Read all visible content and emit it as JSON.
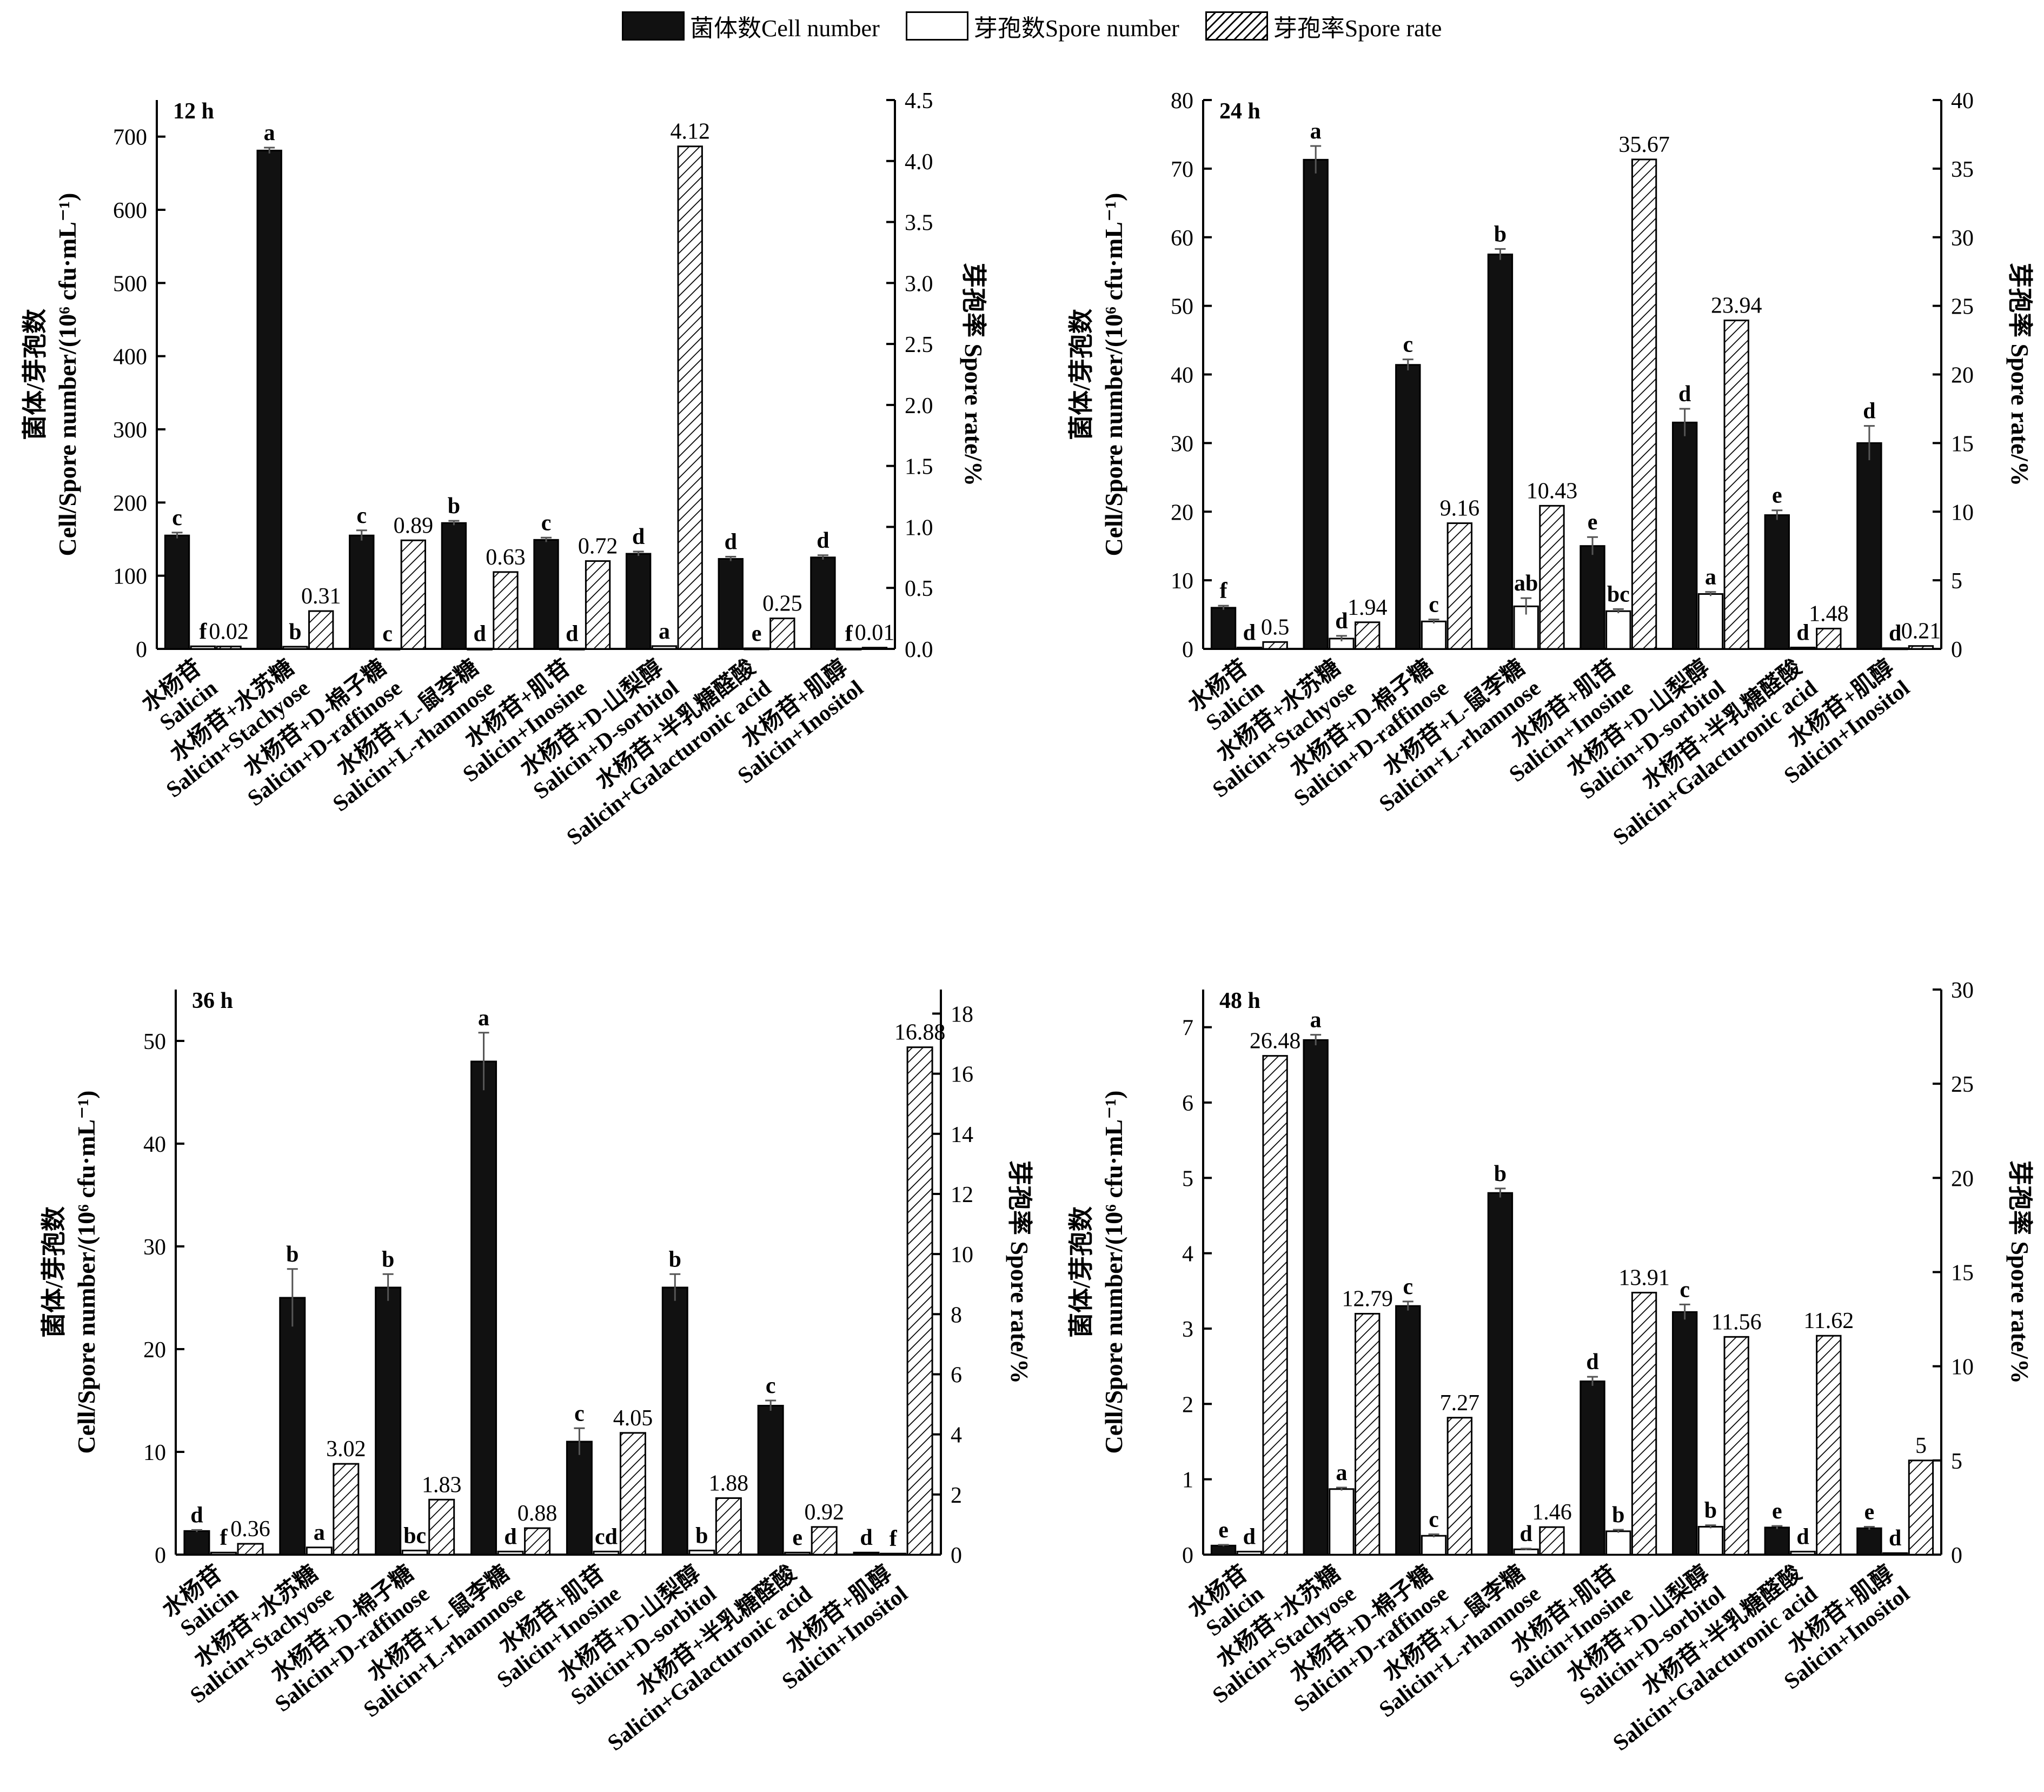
{
  "legend": {
    "cell_label": "菌体数Cell number",
    "spore_label": "芽孢数Spore number",
    "rate_label": "芽孢率Spore rate"
  },
  "colors": {
    "cell": "#111111",
    "spore": "#ffffff",
    "rate_hatch": "#000000"
  },
  "axis_titles": {
    "left_cn": "菌体/芽孢数",
    "left_en": "Cell/Spore number/(10⁶ cfu·mL⁻¹)",
    "right_cn": "芽孢率",
    "right_en": "Spore rate/%",
    "right_combined": "芽孢率  Spore rate/%"
  },
  "chart_data": [
    {
      "type": "bar",
      "panel_label": "12 h",
      "categories_cn": [
        "水杨苷",
        "水杨苷+水苏糖",
        "水杨苷+D-棉子糖",
        "水杨苷+L-鼠李糖",
        "水杨苷+肌苷",
        "水杨苷+D-山梨醇",
        "水杨苷+半乳糖醛酸",
        "水杨苷+肌醇"
      ],
      "categories_en": [
        "Salicin",
        "Salicin+Stachyose",
        "Salicin+D-raffinose",
        "Salicin+L-rhamnose",
        "Salicin+Inosine",
        "Salicin+D-sorbitol",
        "Salicin+Galacturonic acid",
        "Salicin+Inositol"
      ],
      "ylim_left": [
        0,
        750
      ],
      "yticks_left": [
        0,
        100,
        200,
        300,
        400,
        500,
        600,
        700
      ],
      "ylim_right": [
        0,
        4.5
      ],
      "yticks_right": [
        0.0,
        0.5,
        1.0,
        1.5,
        2.0,
        2.5,
        3.0,
        3.5,
        4.0,
        4.5
      ],
      "right_decimals": 1,
      "series": [
        {
          "name": "菌体数Cell number",
          "axis": "left",
          "values": [
            155,
            681,
            155,
            172,
            149,
            130,
            123,
            125
          ],
          "errors": [
            4,
            4,
            7,
            3,
            3,
            3,
            3,
            3
          ],
          "letters": [
            "c",
            "a",
            "c",
            "b",
            "c",
            "d",
            "d",
            "d"
          ]
        },
        {
          "name": "芽孢数Spore number",
          "axis": "left",
          "values": [
            3.5,
            3,
            0.5,
            0.5,
            0.5,
            3.8,
            0.8,
            0.5
          ],
          "errors": [
            0,
            0,
            0,
            0,
            0,
            0,
            0,
            0
          ],
          "letters": [
            "f",
            "b",
            "c",
            "d",
            "d",
            "a",
            "e",
            "f"
          ]
        },
        {
          "name": "芽孢率Spore rate",
          "axis": "right",
          "values": [
            0.02,
            0.31,
            0.89,
            0.63,
            0.72,
            4.12,
            0.25,
            0.01
          ],
          "labels": [
            "0.02",
            "0.31",
            "0.89",
            "0.63",
            "0.72",
            "4.12",
            "0.25",
            "0.01"
          ]
        }
      ]
    },
    {
      "type": "bar",
      "panel_label": "24 h",
      "categories_cn": [
        "水杨苷",
        "水杨苷+水苏糖",
        "水杨苷+D-棉子糖",
        "水杨苷+L-鼠李糖",
        "水杨苷+肌苷",
        "水杨苷+D-山梨醇",
        "水杨苷+半乳糖醛酸",
        "水杨苷+肌醇"
      ],
      "categories_en": [
        "Salicin",
        "Salicin+Stachyose",
        "Salicin+D-raffinose",
        "Salicin+L-rhamnose",
        "Salicin+Inosine",
        "Salicin+D-sorbitol",
        "Salicin+Galacturonic acid",
        "Salicin+Inositol"
      ],
      "ylim_left": [
        0,
        80
      ],
      "yticks_left": [
        0,
        10,
        20,
        30,
        40,
        50,
        60,
        70,
        80
      ],
      "ylim_right": [
        0,
        40
      ],
      "yticks_right": [
        0,
        5,
        10,
        15,
        20,
        25,
        30,
        35,
        40
      ],
      "right_decimals": 0,
      "series": [
        {
          "name": "菌体数Cell number",
          "axis": "left",
          "values": [
            6,
            71.3,
            41.4,
            57.5,
            15,
            33,
            19.5,
            30
          ],
          "errors": [
            0.3,
            2,
            0.8,
            0.8,
            1.3,
            2,
            0.7,
            2.5
          ],
          "letters": [
            "f",
            "a",
            "c",
            "b",
            "e",
            "d",
            "e",
            "d"
          ]
        },
        {
          "name": "芽孢数Spore number",
          "axis": "left",
          "values": [
            0.2,
            1.5,
            4,
            6.2,
            5.5,
            8,
            0.2,
            0.1
          ],
          "errors": [
            0,
            0.4,
            0.3,
            1.2,
            0.3,
            0.3,
            0,
            0
          ],
          "letters": [
            "d",
            "d",
            "c",
            "ab",
            "bc",
            "a",
            "d",
            "d"
          ]
        },
        {
          "name": "芽孢率Spore rate",
          "axis": "right",
          "values": [
            0.5,
            1.94,
            9.16,
            10.43,
            35.67,
            23.94,
            1.48,
            0.21
          ],
          "labels": [
            "0.5",
            "1.94",
            "9.16",
            "10.43",
            "35.67",
            "23.94",
            "1.48",
            "0.21"
          ]
        }
      ]
    },
    {
      "type": "bar",
      "panel_label": "36 h",
      "categories_cn": [
        "水杨苷",
        "水杨苷+水苏糖",
        "水杨苷+D-棉子糖",
        "水杨苷+L-鼠李糖",
        "水杨苷+肌苷",
        "水杨苷+D-山梨醇",
        "水杨苷+半乳糖醛酸",
        "水杨苷+肌醇"
      ],
      "categories_en": [
        "Salicin",
        "Salicin+Stachyose",
        "Salicin+D-raffinose",
        "Salicin+L-rhamnose",
        "Salicin+Inosine",
        "Salicin+D-sorbitol",
        "Salicin+Galacturonic acid",
        "Salicin+Inositol"
      ],
      "ylim_left": [
        0,
        55
      ],
      "yticks_left": [
        0,
        10,
        20,
        30,
        40,
        50
      ],
      "ylim_right": [
        0,
        18.8
      ],
      "yticks_right": [
        0,
        2,
        4,
        6,
        8,
        10,
        12,
        14,
        16,
        18
      ],
      "right_decimals": 0,
      "series": [
        {
          "name": "菌体数Cell number",
          "axis": "left",
          "values": [
            2.3,
            25,
            26,
            48,
            11,
            26,
            14.5,
            0.2
          ],
          "errors": [
            0.1,
            2.8,
            1.3,
            2.8,
            1.3,
            1.3,
            0.5,
            0
          ],
          "letters": [
            "d",
            "b",
            "b",
            "a",
            "c",
            "b",
            "c",
            "d"
          ]
        },
        {
          "name": "芽孢数Spore number",
          "axis": "left",
          "values": [
            0.2,
            0.7,
            0.4,
            0.3,
            0.3,
            0.4,
            0.2,
            0.1
          ],
          "errors": [
            0,
            0,
            0,
            0,
            0,
            0,
            0,
            0
          ],
          "letters": [
            "f",
            "a",
            "bc",
            "d",
            "cd",
            "b",
            "e",
            "f"
          ]
        },
        {
          "name": "芽孢率Spore rate",
          "axis": "right",
          "values": [
            0.36,
            3.02,
            1.83,
            0.88,
            4.05,
            1.88,
            0.92,
            16.88
          ],
          "labels": [
            "0.36",
            "3.02",
            "1.83",
            "0.88",
            "4.05",
            "1.88",
            "0.92",
            "16.88"
          ]
        }
      ]
    },
    {
      "type": "bar",
      "panel_label": "48 h",
      "categories_cn": [
        "水杨苷",
        "水杨苷+水苏糖",
        "水杨苷+D-棉子糖",
        "水杨苷+L-鼠李糖",
        "水杨苷+肌苷",
        "水杨苷+D-山梨醇",
        "水杨苷+半乳糖醛酸",
        "水杨苷+肌醇"
      ],
      "categories_en": [
        "Salicin",
        "Salicin+Stachyose",
        "Salicin+D-raffinose",
        "Salicin+L-rhamnose",
        "Salicin+Inosine",
        "Salicin+D-sorbitol",
        "Salicin+Galacturonic acid",
        "Salicin+Inositol"
      ],
      "ylim_left": [
        0,
        7.5
      ],
      "yticks_left": [
        0,
        1,
        2,
        3,
        4,
        5,
        6,
        7
      ],
      "ylim_right": [
        0,
        30
      ],
      "yticks_right": [
        0,
        5,
        10,
        15,
        20,
        25,
        30
      ],
      "right_decimals": 0,
      "series": [
        {
          "name": "菌体数Cell number",
          "axis": "left",
          "values": [
            0.12,
            6.83,
            3.3,
            4.8,
            2.3,
            3.22,
            0.36,
            0.35
          ],
          "errors": [
            0.01,
            0.07,
            0.06,
            0.06,
            0.06,
            0.1,
            0.02,
            0.02
          ],
          "letters": [
            "e",
            "a",
            "c",
            "b",
            "d",
            "c",
            "e",
            "e"
          ]
        },
        {
          "name": "芽孢数Spore number",
          "axis": "left",
          "values": [
            0.04,
            0.87,
            0.25,
            0.07,
            0.31,
            0.37,
            0.04,
            0.02
          ],
          "errors": [
            0,
            0.02,
            0.02,
            0.01,
            0.02,
            0.02,
            0,
            0
          ],
          "letters": [
            "d",
            "a",
            "c",
            "d",
            "b",
            "b",
            "d",
            "d"
          ]
        },
        {
          "name": "芽孢率Spore rate",
          "axis": "right",
          "values": [
            26.48,
            12.79,
            7.27,
            1.46,
            13.91,
            11.56,
            11.62,
            5
          ],
          "labels": [
            "26.48",
            "12.79",
            "7.27",
            "1.46",
            "13.91",
            "11.56",
            "11.62",
            "5"
          ]
        }
      ]
    }
  ]
}
